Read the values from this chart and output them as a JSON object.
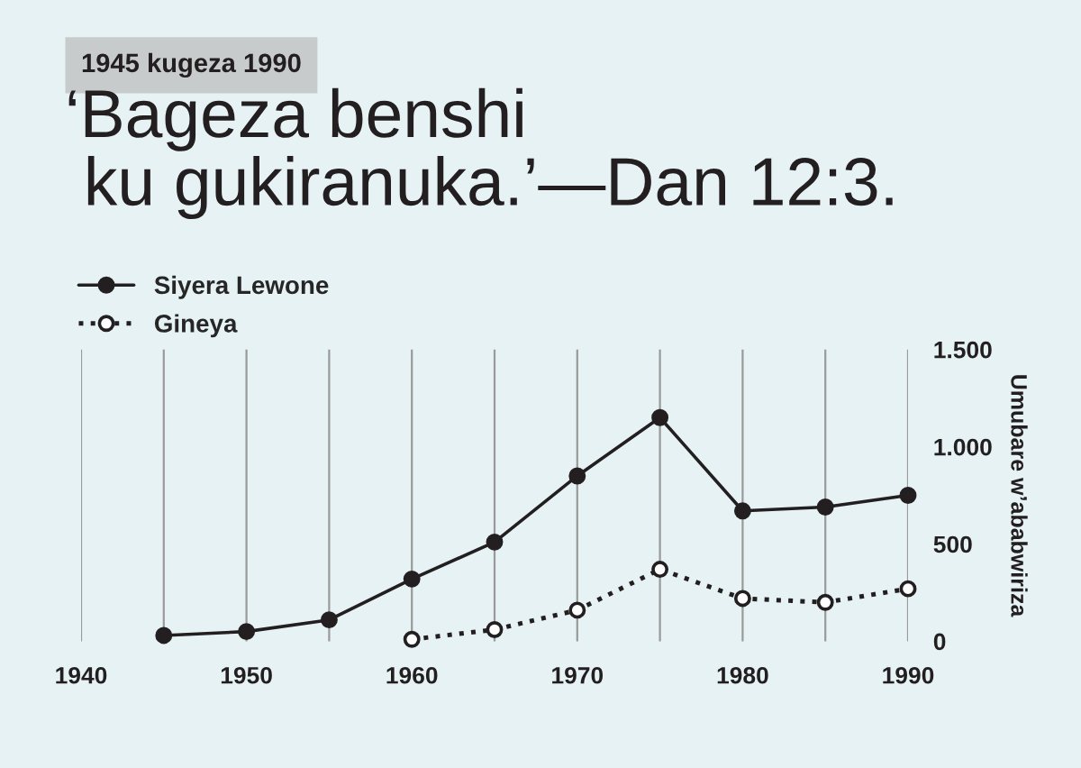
{
  "chart_data": {
    "type": "line",
    "subtitle": "1945 kugeza 1990",
    "title": "‘Bageza benshi\n ku gukiranuka.’—Dan 12:3.",
    "ylabel": "Umubare w’ababwiriza",
    "x": [
      1945,
      1950,
      1955,
      1960,
      1965,
      1970,
      1975,
      1980,
      1985,
      1990
    ],
    "series": [
      {
        "name": "Siyera Lewone",
        "color": "#231f20",
        "marker": "circle",
        "line_style": "solid",
        "values": [
          30,
          50,
          110,
          320,
          510,
          850,
          1150,
          670,
          690,
          750
        ]
      },
      {
        "name": "Gineya",
        "color": "#231f20",
        "marker": "circle",
        "line_style": "dotted",
        "values": [
          null,
          null,
          null,
          10,
          60,
          160,
          370,
          220,
          200,
          270
        ]
      }
    ],
    "xlim": [
      1940,
      1990
    ],
    "xticks": [
      1940,
      1950,
      1960,
      1970,
      1980,
      1990
    ],
    "ylim": [
      0,
      1500
    ],
    "yticks": [
      0,
      500,
      {
        "value": 1000,
        "label": "1.000"
      },
      {
        "value": 1500,
        "label": "1.500"
      }
    ],
    "grid": "x",
    "legend": "top left"
  }
}
